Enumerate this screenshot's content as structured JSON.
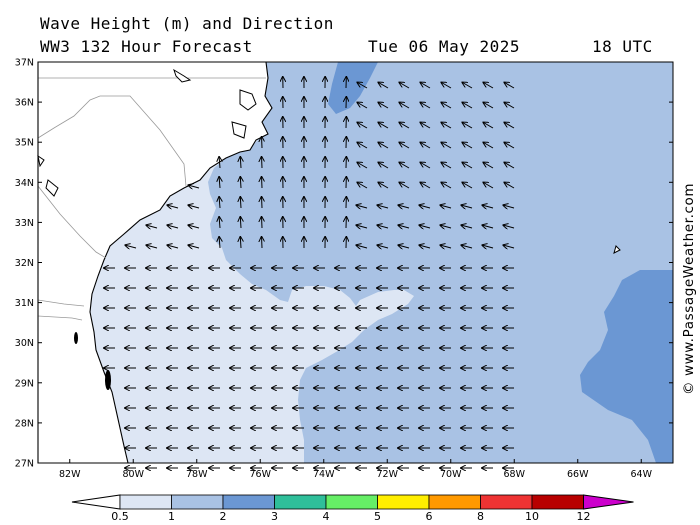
{
  "header": {
    "line1": "Wave Height (m) and Direction",
    "line2": "WW3 132 Hour Forecast",
    "date": "Tue 06 May 2025",
    "time": "18 UTC"
  },
  "map": {
    "lat_labels": [
      "37N",
      "36N",
      "35N",
      "34N",
      "33N",
      "32N",
      "31N",
      "30N",
      "29N",
      "28N",
      "27N"
    ],
    "lon_labels": [
      "82W",
      "80W",
      "78W",
      "76W",
      "74W",
      "72W",
      "70W",
      "68W",
      "66W",
      "64W"
    ],
    "lat_range": [
      27,
      37
    ],
    "lon_range": [
      -83,
      -63
    ],
    "arrow_direction": "waves travelling mostly westward, turning northward near 74W-76W"
  },
  "legend": {
    "ticks": [
      "0.5",
      "1",
      "2",
      "3",
      "4",
      "5",
      "6",
      "8",
      "10",
      "12"
    ],
    "colors": [
      "#dde6f4",
      "#a9c2e4",
      "#6b97d3",
      "#2fbf9a",
      "#66ee66",
      "#ffee00",
      "#ff9900",
      "#ee3333",
      "#b80000",
      "#cc00cc"
    ]
  },
  "credit": "© www.PassageWeather.com"
}
